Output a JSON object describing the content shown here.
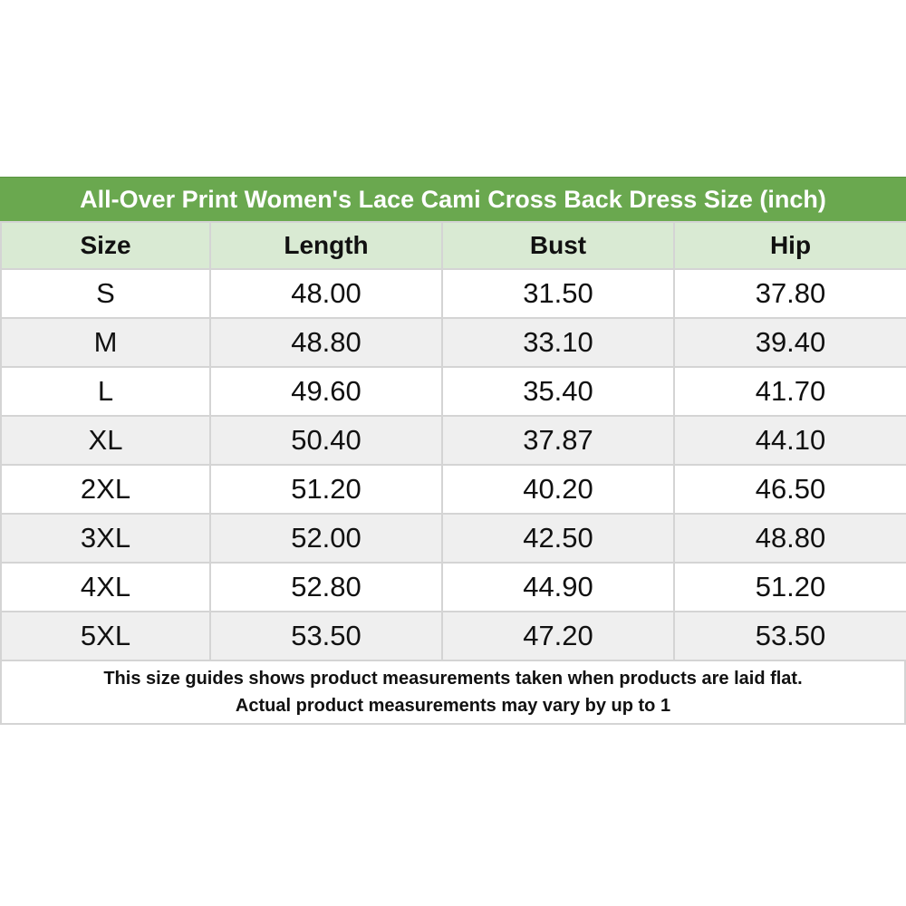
{
  "title": "All-Over Print Women's Lace Cami Cross Back Dress Size (inch)",
  "colors": {
    "title_bg": "#6aa84f",
    "header_bg": "#d9ead3",
    "alt_row_bg": "#efefef"
  },
  "columns": [
    "Size",
    "Length",
    "Bust",
    "Hip"
  ],
  "rows": [
    [
      "S",
      "48.00",
      "31.50",
      "37.80"
    ],
    [
      "M",
      "48.80",
      "33.10",
      "39.40"
    ],
    [
      "L",
      "49.60",
      "35.40",
      "41.70"
    ],
    [
      "XL",
      "50.40",
      "37.87",
      "44.10"
    ],
    [
      "2XL",
      "51.20",
      "40.20",
      "46.50"
    ],
    [
      "3XL",
      "52.00",
      "42.50",
      "48.80"
    ],
    [
      "4XL",
      "52.80",
      "44.90",
      "51.20"
    ],
    [
      "5XL",
      "53.50",
      "47.20",
      "53.50"
    ]
  ],
  "footer": [
    "This size guides shows product measurements taken when products are laid flat.",
    "Actual product measurements may vary by up to 1"
  ]
}
